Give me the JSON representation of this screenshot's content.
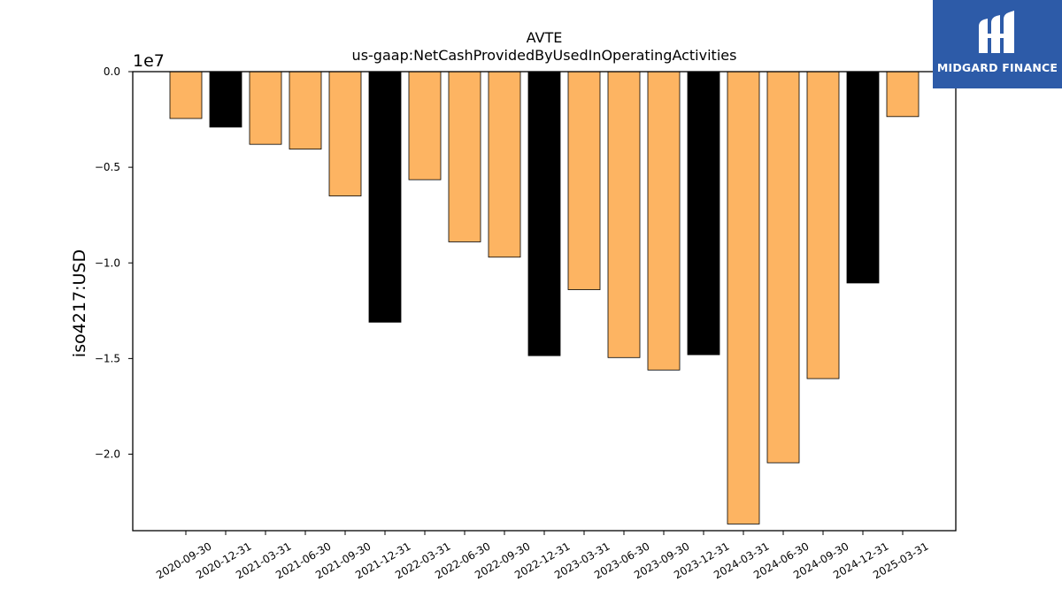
{
  "chart_data": {
    "type": "bar",
    "title": "AVTE",
    "subtitle": "us-gaap:NetCashProvidedByUsedInOperatingActivities",
    "ylabel": "iso4217:USD",
    "y_offset_label": "1e7",
    "ylim": [
      -24000000,
      0
    ],
    "yticks": [
      0.0,
      -0.5,
      -1.0,
      -1.5,
      -2.0
    ],
    "ytick_labels": [
      "0.0",
      "−0.5",
      "−1.0",
      "−1.5",
      "−2.0"
    ],
    "categories": [
      "2020-09-30",
      "2020-12-31",
      "2021-03-31",
      "2021-06-30",
      "2021-09-30",
      "2021-12-31",
      "2022-03-31",
      "2022-06-30",
      "2022-09-30",
      "2022-12-31",
      "2023-03-31",
      "2023-06-30",
      "2023-09-30",
      "2023-12-31",
      "2024-03-31",
      "2024-06-30",
      "2024-09-30",
      "2024-12-31",
      "2025-03-31"
    ],
    "values": [
      -2450000,
      -2900000,
      -3800000,
      -4050000,
      -6500000,
      -13100000,
      -5650000,
      -8900000,
      -9700000,
      -14850000,
      -11400000,
      -14950000,
      -15600000,
      -14800000,
      -23650000,
      -20450000,
      -16050000,
      -11050000,
      -2350000
    ],
    "bar_colors": [
      "#fdb462",
      "#000000",
      "#fdb462",
      "#fdb462",
      "#fdb462",
      "#000000",
      "#fdb462",
      "#fdb462",
      "#fdb462",
      "#000000",
      "#fdb462",
      "#fdb462",
      "#fdb462",
      "#000000",
      "#fdb462",
      "#fdb462",
      "#fdb462",
      "#000000",
      "#fdb462"
    ],
    "grid": false,
    "legend": "none"
  },
  "logo": {
    "text": "MIDGARD FINANCE",
    "background": "#2d5ba8",
    "icon": "midgard-logo-icon"
  }
}
